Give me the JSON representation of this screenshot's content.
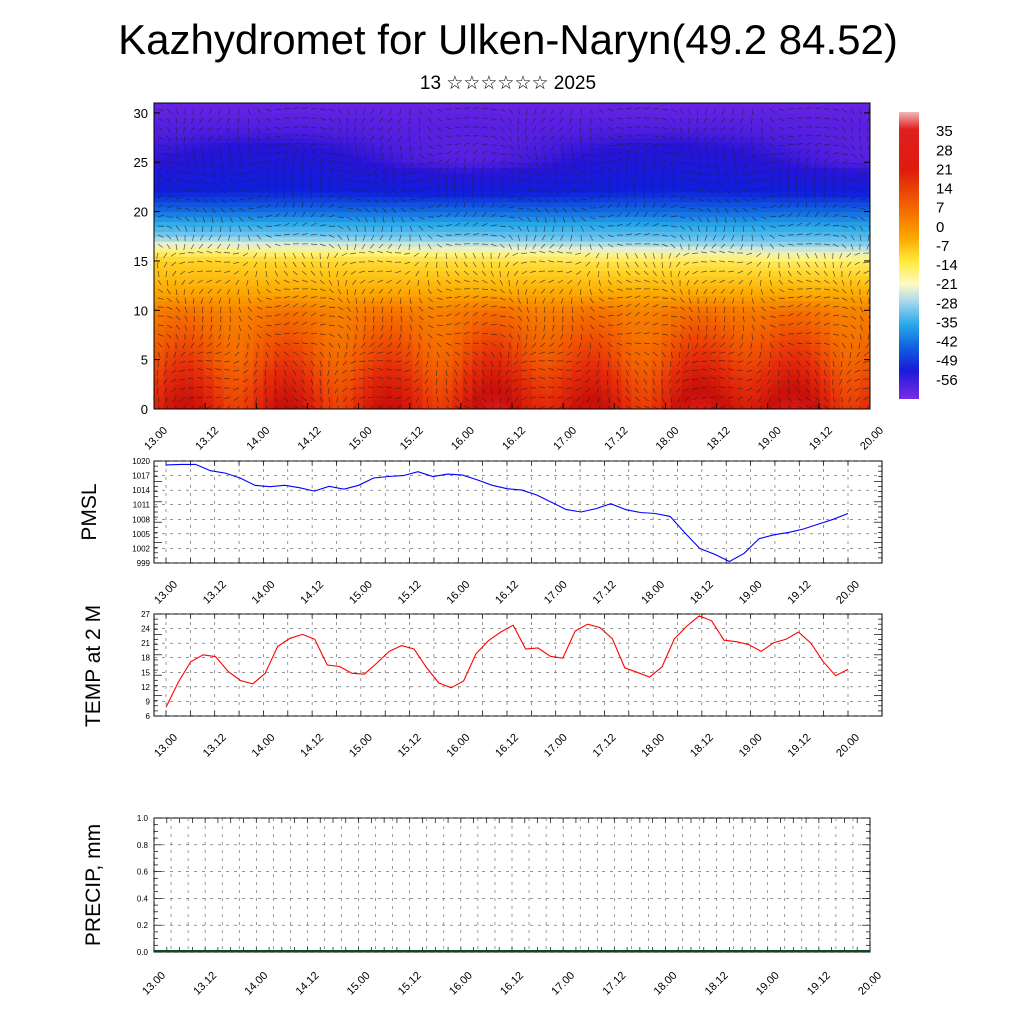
{
  "title": "Kazhydromet for Ulken-Naryn(49.2 84.52)",
  "subtitle": "13 ☆☆☆☆☆☆ 2025",
  "chart_data": [
    {
      "type": "heatmap",
      "description_of_field": "temperature cross-section with wind vectors",
      "x_tick_labels": [
        "13.00",
        "13.12",
        "14.00",
        "14.12",
        "15.00",
        "15.12",
        "16.00",
        "16.12",
        "17.00",
        "17.12",
        "18.00",
        "18.12",
        "19.00",
        "19.12",
        "20.00"
      ],
      "y_tick_labels": [
        "0",
        "5",
        "10",
        "15",
        "20",
        "25",
        "30"
      ],
      "ylim": [
        0,
        31
      ],
      "colorbar": {
        "labels": [
          "35",
          "28",
          "21",
          "14",
          "7",
          "0",
          "-7",
          "-14",
          "-21",
          "-28",
          "-35",
          "-42",
          "-49",
          "-56"
        ],
        "range": [
          -63,
          42
        ]
      },
      "temperature_profile_by_level": [
        {
          "level": 0,
          "value": 24
        },
        {
          "level": 5,
          "value": 17
        },
        {
          "level": 10,
          "value": 12
        },
        {
          "level": 15,
          "value": -2
        },
        {
          "level": 18,
          "value": -25
        },
        {
          "level": 20,
          "value": -38
        },
        {
          "level": 22,
          "value": -48
        },
        {
          "level": 25,
          "value": -58
        },
        {
          "level": 28,
          "value": -62
        },
        {
          "level": 31,
          "value": -64
        }
      ]
    },
    {
      "type": "line",
      "ylabel": "PMSL",
      "x_tick_labels": [
        "13.00",
        "13.12",
        "14.00",
        "14.12",
        "15.00",
        "15.12",
        "16.00",
        "16.12",
        "17.00",
        "17.12",
        "18.00",
        "18.12",
        "19.00",
        "19.12",
        "20.00"
      ],
      "y_tick_labels": [
        "999",
        "1002",
        "1005",
        "1008",
        "1011",
        "1014",
        "1017",
        "1020"
      ],
      "ylim": [
        999,
        1020
      ],
      "line_color": "#0000ff",
      "values": [
        1019.2,
        1019.3,
        1019.3,
        1018.0,
        1017.5,
        1016.5,
        1015.0,
        1014.7,
        1015.0,
        1014.5,
        1013.8,
        1014.8,
        1014.2,
        1015.0,
        1016.5,
        1016.8,
        1017.0,
        1017.8,
        1016.8,
        1017.3,
        1017.1,
        1016.1,
        1015.0,
        1014.3,
        1014.0,
        1013.0,
        1011.5,
        1010.0,
        1009.5,
        1010.2,
        1011.2,
        1010.0,
        1009.4,
        1009.2,
        1008.6,
        1005.2,
        1002.0,
        1000.8,
        999.3,
        1001.0,
        1004.0,
        1004.8,
        1005.3,
        1006.0,
        1007.0,
        1008.0,
        1009.2
      ]
    },
    {
      "type": "line",
      "ylabel": "TEMP at 2 M",
      "x_tick_labels": [
        "13.00",
        "13.12",
        "14.00",
        "14.12",
        "15.00",
        "15.12",
        "16.00",
        "16.12",
        "17.00",
        "17.12",
        "18.00",
        "18.12",
        "19.00",
        "19.12",
        "20.00"
      ],
      "y_tick_labels": [
        "6",
        "9",
        "12",
        "15",
        "18",
        "21",
        "24",
        "27"
      ],
      "ylim": [
        6,
        27
      ],
      "line_color": "#ff0000",
      "values": [
        7.8,
        13.0,
        17.2,
        18.6,
        18.2,
        15.2,
        13.3,
        12.6,
        14.8,
        20.3,
        22.0,
        22.8,
        21.8,
        16.5,
        16.2,
        14.8,
        14.6,
        16.9,
        19.3,
        20.5,
        19.8,
        16.0,
        12.8,
        11.8,
        13.2,
        18.8,
        21.5,
        23.3,
        24.7,
        19.8,
        20.0,
        18.3,
        17.9,
        23.5,
        24.9,
        24.2,
        21.9,
        15.9,
        15.0,
        14.0,
        16.1,
        21.9,
        24.5,
        26.6,
        25.6,
        21.6,
        21.3,
        20.7,
        19.3,
        21.1,
        21.8,
        23.3,
        21.0,
        17.2,
        14.3,
        15.6
      ]
    },
    {
      "type": "bar",
      "ylabel": "PRECIP, mm",
      "x_tick_labels": [
        "13.00",
        "13.12",
        "14.00",
        "14.12",
        "15.00",
        "15.12",
        "16.00",
        "16.12",
        "17.00",
        "17.12",
        "18.00",
        "18.12",
        "19.00",
        "19.12",
        "20.00"
      ],
      "y_tick_labels": [
        "0.0",
        "0.2",
        "0.4",
        "0.6",
        "0.8",
        "1.0"
      ],
      "ylim": [
        0,
        1
      ],
      "values": []
    }
  ]
}
